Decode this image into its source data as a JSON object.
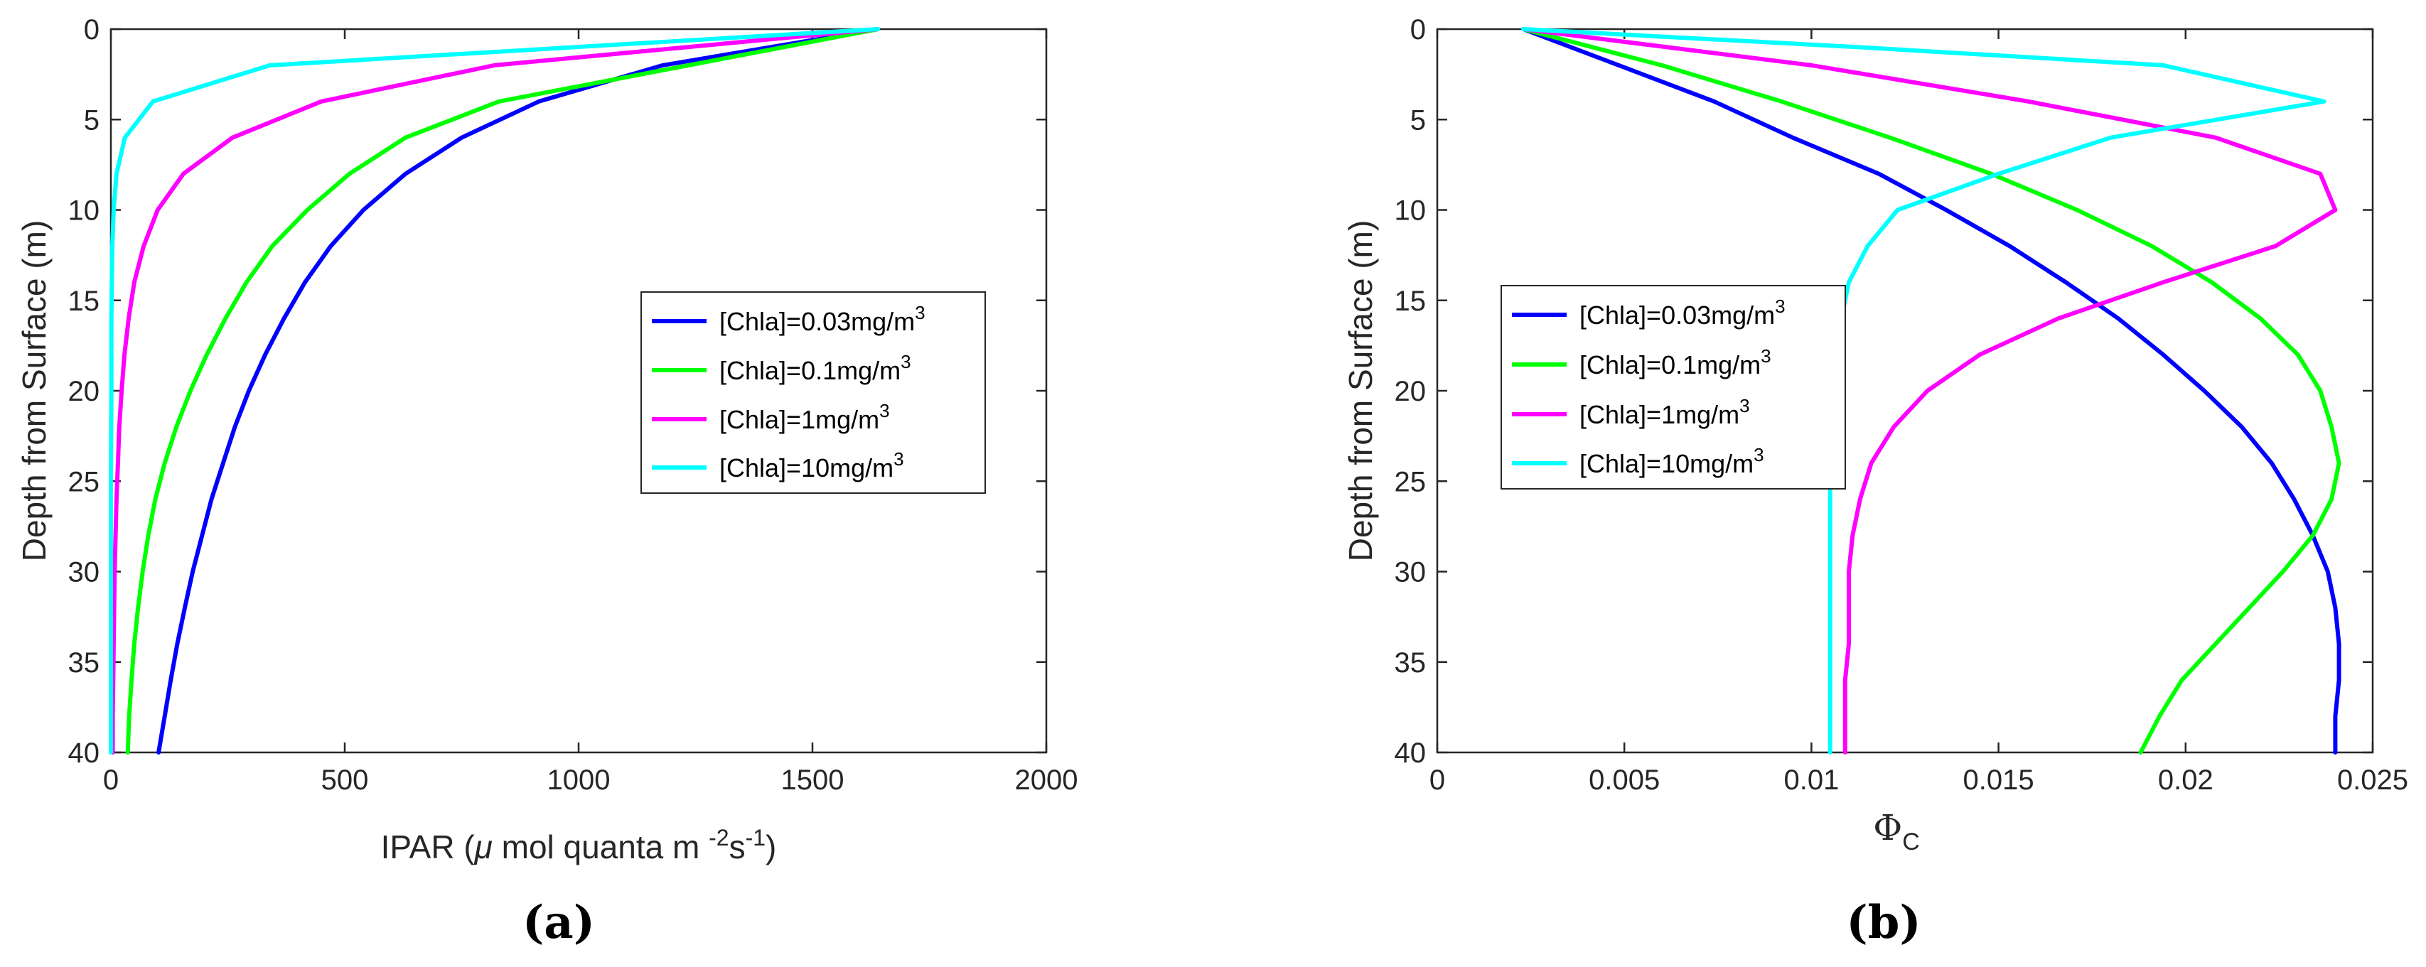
{
  "panels": {
    "a": {
      "label": "(a)"
    },
    "b": {
      "label": "(b)"
    }
  },
  "chart_data": [
    {
      "type": "line",
      "title": "",
      "xlabel": "IPAR (μ mol quanta m -2s -1)",
      "xlabel_parts": {
        "main": "IPAR (",
        "mu": "μ",
        "mid": " mol quanta m ",
        "exp1": "-2",
        "s": "s",
        "exp2": "-1",
        "close": ")"
      },
      "ylabel": "Depth from Surface (m)",
      "xlim": [
        0,
        2000
      ],
      "ylim": [
        40,
        0
      ],
      "xticks": [
        "0",
        "500",
        "1000",
        "1500",
        "2000"
      ],
      "yticks": [
        "0",
        "5",
        "10",
        "15",
        "20",
        "25",
        "30",
        "35",
        "40"
      ],
      "legend_position": "center-right",
      "series": [
        {
          "name": "[Chla]=0.03mg/m3",
          "name_base": "[Chla]=0.03mg/m",
          "name_sup": "3",
          "color": "#0000ff",
          "points": [
            [
              1640,
              0
            ],
            [
              1180,
              2
            ],
            [
              915,
              4
            ],
            [
              750,
              6
            ],
            [
              630,
              8
            ],
            [
              540,
              10
            ],
            [
              470,
              12
            ],
            [
              415,
              14
            ],
            [
              370,
              16
            ],
            [
              330,
              18
            ],
            [
              295,
              20
            ],
            [
              265,
              22
            ],
            [
              240,
              24
            ],
            [
              215,
              26
            ],
            [
              195,
              28
            ],
            [
              175,
              30
            ],
            [
              158,
              32
            ],
            [
              142,
              34
            ],
            [
              128,
              36
            ],
            [
              115,
              38
            ],
            [
              102,
              40
            ]
          ]
        },
        {
          "name": "[Chla]=0.1mg/m3",
          "name_base": "[Chla]=0.1mg/m",
          "name_sup": "3",
          "color": "#00ff00",
          "points": [
            [
              1640,
              0
            ],
            [
              830,
              4
            ],
            [
              630,
              6
            ],
            [
              510,
              8
            ],
            [
              420,
              10
            ],
            [
              345,
              12
            ],
            [
              290,
              14
            ],
            [
              245,
              16
            ],
            [
              205,
              18
            ],
            [
              170,
              20
            ],
            [
              140,
              22
            ],
            [
              115,
              24
            ],
            [
              95,
              26
            ],
            [
              80,
              28
            ],
            [
              68,
              30
            ],
            [
              58,
              32
            ],
            [
              50,
              34
            ],
            [
              44,
              36
            ],
            [
              39,
              38
            ],
            [
              36,
              40
            ]
          ]
        },
        {
          "name": "[Chla]=1mg/m3",
          "name_base": "[Chla]=1mg/m",
          "name_sup": "3",
          "color": "#ff00ff",
          "points": [
            [
              1640,
              0
            ],
            [
              820,
              2
            ],
            [
              450,
              4
            ],
            [
              260,
              6
            ],
            [
              155,
              8
            ],
            [
              100,
              10
            ],
            [
              70,
              12
            ],
            [
              50,
              14
            ],
            [
              38,
              16
            ],
            [
              29,
              18
            ],
            [
              23,
              20
            ],
            [
              18,
              22
            ],
            [
              15,
              24
            ],
            [
              12,
              26
            ],
            [
              10,
              28
            ],
            [
              8,
              30
            ],
            [
              7,
              32
            ],
            [
              6,
              34
            ],
            [
              5,
              36
            ],
            [
              4,
              38
            ],
            [
              4,
              40
            ]
          ]
        },
        {
          "name": "[Chla]=10mg/m3",
          "name_base": "[Chla]=10mg/m",
          "name_sup": "3",
          "color": "#00ffff",
          "points": [
            [
              1640,
              0
            ],
            [
              340,
              2
            ],
            [
              90,
              4
            ],
            [
              30,
              6
            ],
            [
              12,
              8
            ],
            [
              6,
              10
            ],
            [
              3,
              12
            ],
            [
              2,
              14
            ],
            [
              1,
              16
            ],
            [
              1,
              20
            ],
            [
              0,
              25
            ],
            [
              0,
              30
            ],
            [
              0,
              35
            ],
            [
              0,
              40
            ]
          ]
        }
      ]
    },
    {
      "type": "line",
      "title": "",
      "xlabel": "ΦC",
      "xlabel_parts": {
        "main": "Φ",
        "sub": "C"
      },
      "ylabel": "Depth from Surface (m)",
      "xlim": [
        0,
        0.025
      ],
      "ylim": [
        40,
        0
      ],
      "xticks": [
        "0",
        "0.005",
        "0.01",
        "0.015",
        "0.02",
        "0.025"
      ],
      "yticks": [
        "0",
        "5",
        "10",
        "15",
        "20",
        "25",
        "30",
        "35",
        "40"
      ],
      "legend_position": "center-left",
      "series": [
        {
          "name": "[Chla]=0.03mg/m3",
          "name_base": "[Chla]=0.03mg/m",
          "name_sup": "3",
          "color": "#0000ff",
          "points": [
            [
              0.0023,
              0
            ],
            [
              0.0074,
              4
            ],
            [
              0.0095,
              6
            ],
            [
              0.0118,
              8
            ],
            [
              0.0136,
              10
            ],
            [
              0.0153,
              12
            ],
            [
              0.0168,
              14
            ],
            [
              0.0182,
              16
            ],
            [
              0.0194,
              18
            ],
            [
              0.0205,
              20
            ],
            [
              0.0215,
              22
            ],
            [
              0.0223,
              24
            ],
            [
              0.0229,
              26
            ],
            [
              0.0234,
              28
            ],
            [
              0.0238,
              30
            ],
            [
              0.024,
              32
            ],
            [
              0.0241,
              34
            ],
            [
              0.0241,
              36
            ],
            [
              0.024,
              38
            ],
            [
              0.024,
              40
            ]
          ]
        },
        {
          "name": "[Chla]=0.1mg/m3",
          "name_base": "[Chla]=0.1mg/m",
          "name_sup": "3",
          "color": "#00ff00",
          "points": [
            [
              0.0023,
              0
            ],
            [
              0.006,
              2
            ],
            [
              0.0092,
              4
            ],
            [
              0.0121,
              6
            ],
            [
              0.0148,
              8
            ],
            [
              0.0171,
              10
            ],
            [
              0.0191,
              12
            ],
            [
              0.0207,
              14
            ],
            [
              0.022,
              16
            ],
            [
              0.023,
              18
            ],
            [
              0.0236,
              20
            ],
            [
              0.0239,
              22
            ],
            [
              0.0241,
              24
            ],
            [
              0.0239,
              26
            ],
            [
              0.0234,
              28
            ],
            [
              0.0226,
              30
            ],
            [
              0.0217,
              32
            ],
            [
              0.0208,
              34
            ],
            [
              0.0199,
              36
            ],
            [
              0.0193,
              38
            ],
            [
              0.0188,
              40
            ]
          ]
        },
        {
          "name": "[Chla]=1mg/m3",
          "name_base": "[Chla]=1mg/m",
          "name_sup": "3",
          "color": "#ff00ff",
          "points": [
            [
              0.0023,
              0
            ],
            [
              0.01,
              2
            ],
            [
              0.0158,
              4
            ],
            [
              0.0208,
              6
            ],
            [
              0.0236,
              8
            ],
            [
              0.024,
              10
            ],
            [
              0.0224,
              12
            ],
            [
              0.0194,
              14
            ],
            [
              0.0166,
              16
            ],
            [
              0.0145,
              18
            ],
            [
              0.0131,
              20
            ],
            [
              0.0122,
              22
            ],
            [
              0.0116,
              24
            ],
            [
              0.0113,
              26
            ],
            [
              0.0111,
              28
            ],
            [
              0.011,
              30
            ],
            [
              0.011,
              32
            ],
            [
              0.011,
              34
            ],
            [
              0.0109,
              36
            ],
            [
              0.0109,
              38
            ],
            [
              0.0109,
              40
            ]
          ]
        },
        {
          "name": "[Chla]=10mg/m3",
          "name_base": "[Chla]=10mg/m",
          "name_sup": "3",
          "color": "#00ffff",
          "points": [
            [
              0.0023,
              0
            ],
            [
              0.0113,
              1
            ],
            [
              0.0194,
              2
            ],
            [
              0.0237,
              4
            ],
            [
              0.018,
              6
            ],
            [
              0.015,
              8
            ],
            [
              0.0123,
              10
            ],
            [
              0.0115,
              12
            ],
            [
              0.011,
              14
            ],
            [
              0.0108,
              16
            ],
            [
              0.0107,
              18
            ],
            [
              0.0106,
              20
            ],
            [
              0.0106,
              22
            ],
            [
              0.0105,
              25
            ],
            [
              0.0105,
              30
            ],
            [
              0.0105,
              35
            ],
            [
              0.0105,
              40
            ]
          ]
        }
      ]
    }
  ]
}
